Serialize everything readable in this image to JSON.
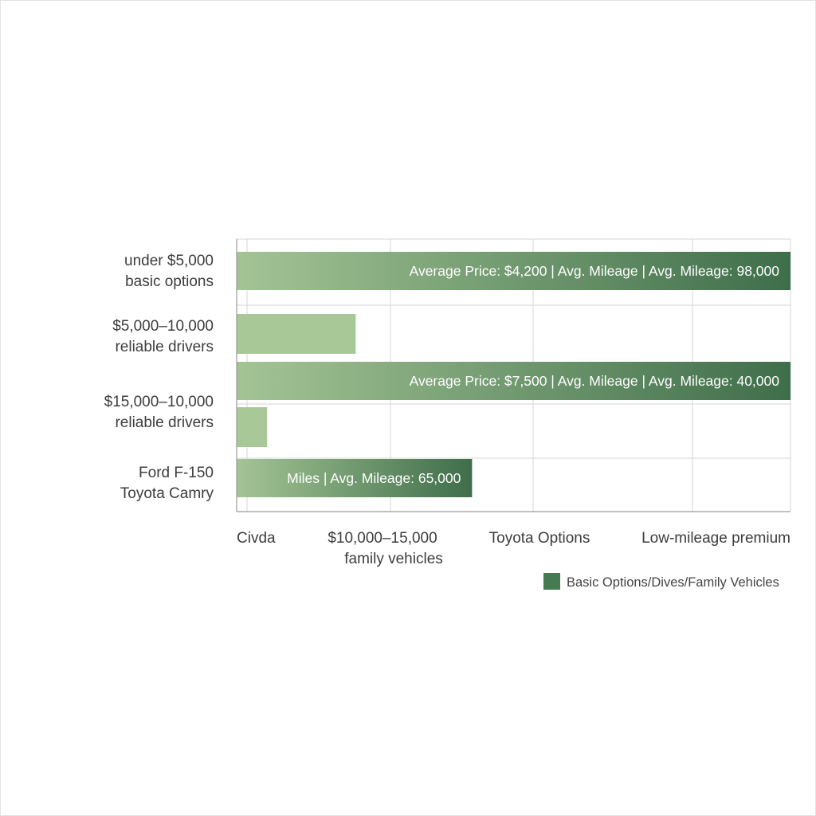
{
  "chart_data": {
    "type": "bar",
    "orientation": "horizontal",
    "title": "",
    "xlabel": "",
    "ylabel": "",
    "grid": true,
    "xlim": [
      0,
      100
    ],
    "y_labels": [
      [
        "under $5,000",
        "basic options"
      ],
      [
        "$5,000–10,000",
        "reliable drivers"
      ],
      [
        "$15,000–10,000",
        "reliable drivers"
      ],
      [
        "Ford F-150",
        "Toyota Camry"
      ]
    ],
    "x_labels": [
      [
        "Civda"
      ],
      [
        "$10,000–15,000",
        "family vehicles"
      ],
      [
        "Toyota Options"
      ],
      [
        "Low-mileage premium"
      ]
    ],
    "bars": [
      {
        "category_index": 0,
        "value": 100,
        "style": "gradient",
        "label": "Average Price: $4,200 | Avg. Mileage | Avg. Mileage: 98,000"
      },
      {
        "category_index": 1,
        "value": 21.5,
        "style": "light",
        "label": ""
      },
      {
        "category_index": 1,
        "value": 100,
        "style": "gradient",
        "label": "Average Price: $7,500 | Avg. Mileage | Avg. Mileage: 40,000"
      },
      {
        "category_index": 2,
        "value": 5.5,
        "style": "light",
        "label": ""
      },
      {
        "category_index": 3,
        "value": 42.5,
        "style": "gradient",
        "label": "Miles | Avg. Mileage: 65,000"
      }
    ],
    "legend": {
      "position": "bottom-right",
      "entries": [
        {
          "label": "Basic Options/Dives/Family Vehicles",
          "color": "#467b52"
        }
      ]
    },
    "colors": {
      "light": "#a8c898",
      "gradient_start": "#a4c495",
      "gradient_end": "#3e6e4a",
      "grid": "#d6d6d6",
      "axis": "#9a9a9a"
    }
  }
}
